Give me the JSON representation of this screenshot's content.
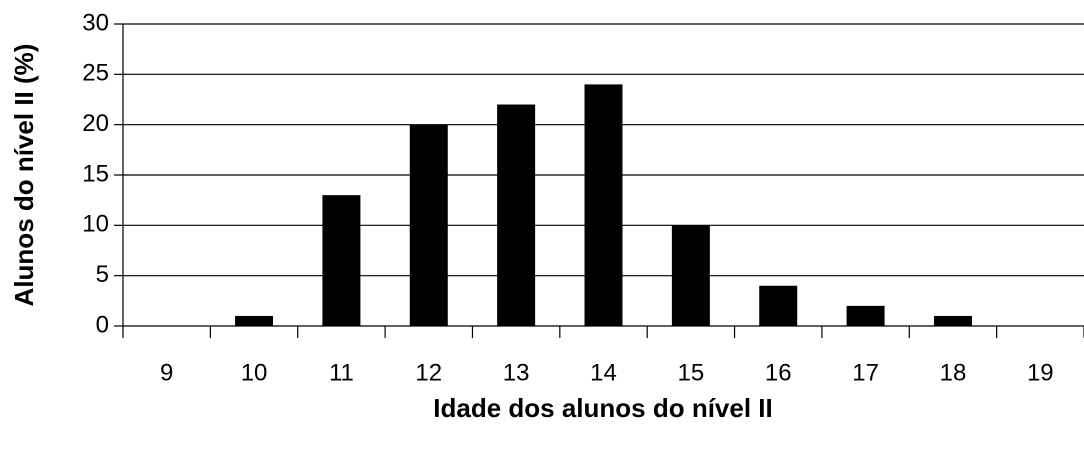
{
  "chart_data": {
    "type": "bar",
    "categories": [
      "9",
      "10",
      "11",
      "12",
      "13",
      "14",
      "15",
      "16",
      "17",
      "18",
      "19"
    ],
    "values": [
      0,
      1,
      13,
      20,
      22,
      24,
      10,
      4,
      2,
      1,
      0
    ],
    "color": "#000000",
    "x_label": "Idade dos alunos do nível II",
    "y_label": "Alunos do nível II (%)",
    "ylim": [
      0,
      30
    ],
    "yticks": [
      0,
      5,
      10,
      15,
      20,
      25,
      30
    ],
    "grid": true
  }
}
